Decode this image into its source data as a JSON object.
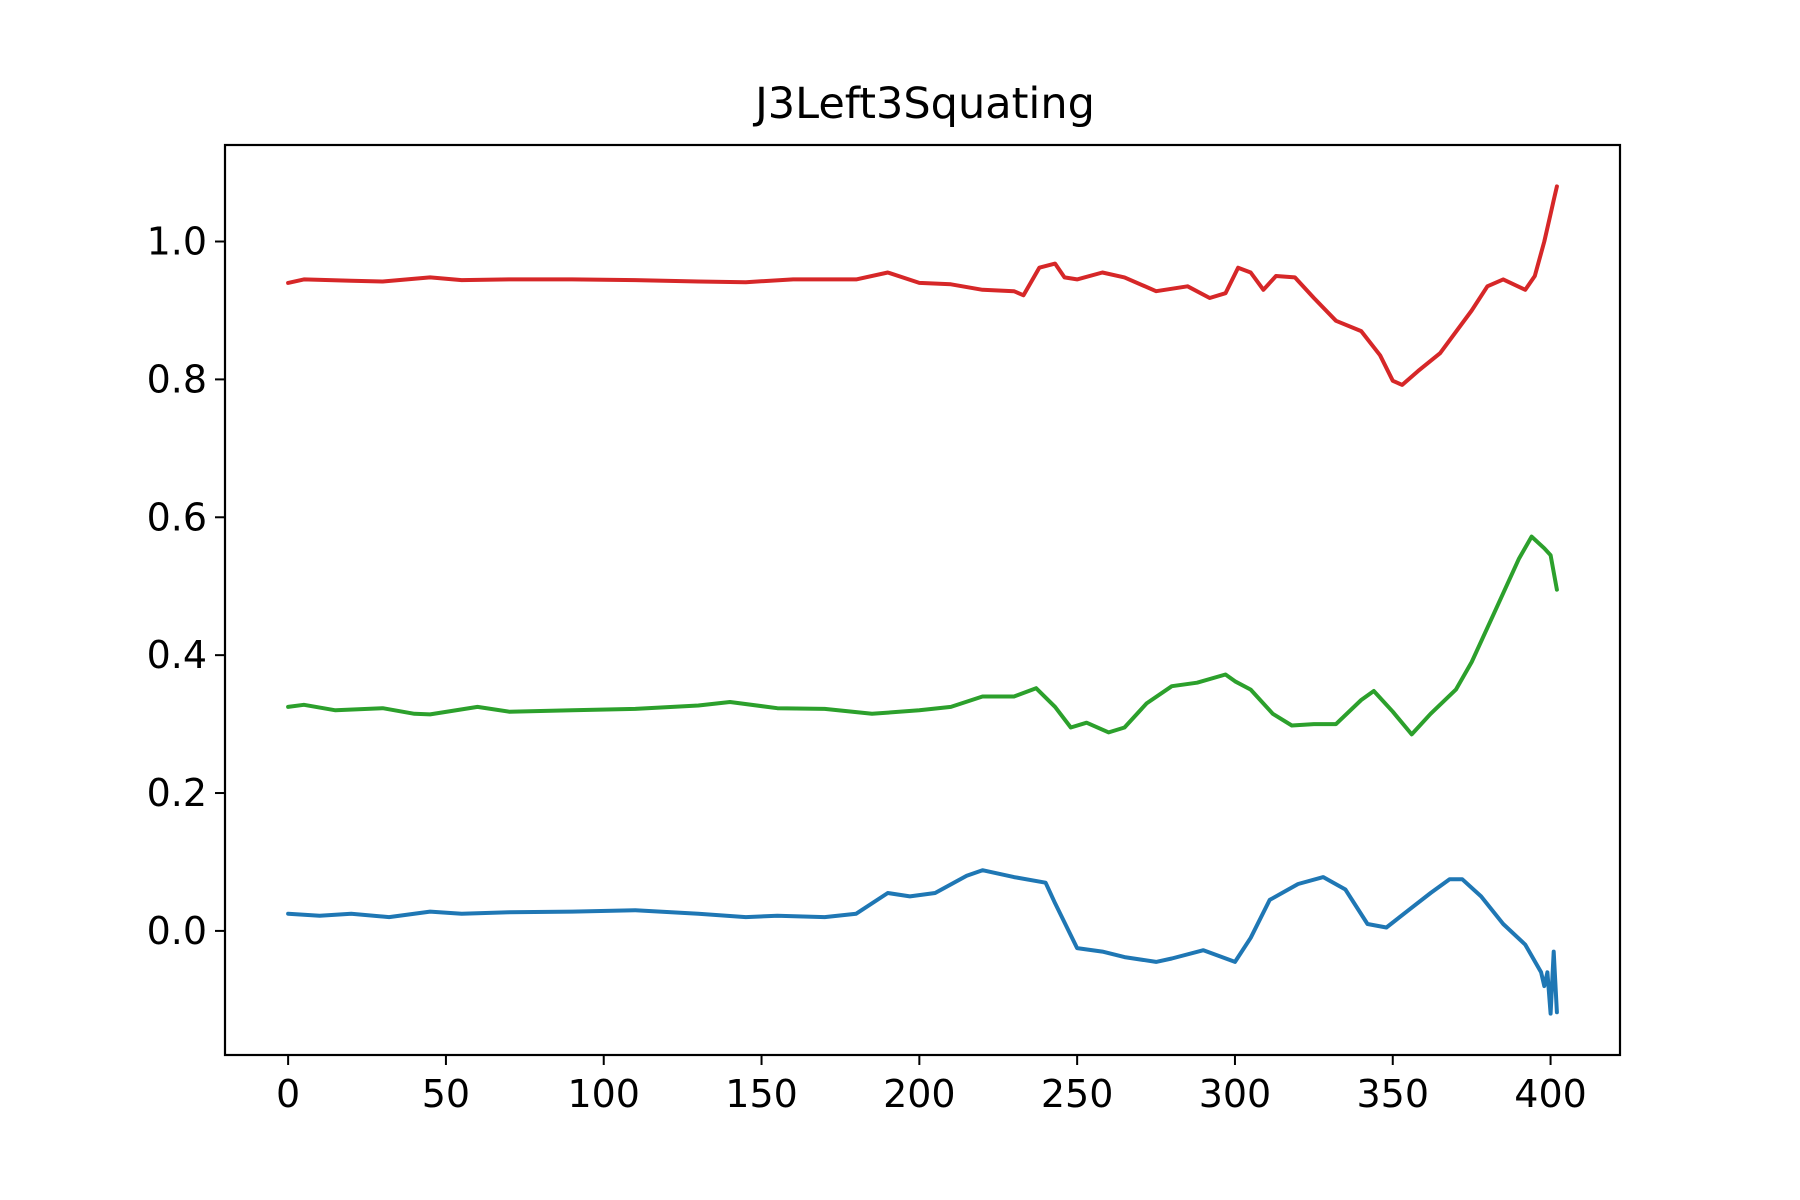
{
  "chart_data": {
    "type": "line",
    "title": "J3Left3Squating",
    "xlabel": "",
    "ylabel": "",
    "xlim": [
      -20,
      422
    ],
    "ylim": [
      -0.18,
      1.14
    ],
    "xticks": [
      0,
      50,
      100,
      150,
      200,
      250,
      300,
      350,
      400
    ],
    "xtick_labels": [
      "0",
      "50",
      "100",
      "150",
      "200",
      "250",
      "300",
      "350",
      "400"
    ],
    "yticks": [
      0.0,
      0.2,
      0.4,
      0.6,
      0.8,
      1.0
    ],
    "ytick_labels": [
      "0.0",
      "0.2",
      "0.4",
      "0.6",
      "0.8",
      "1.0"
    ],
    "grid": false,
    "legend": "none",
    "series": [
      {
        "color": "#d62728",
        "points": [
          [
            0,
            0.94
          ],
          [
            5,
            0.945
          ],
          [
            20,
            0.943
          ],
          [
            30,
            0.942
          ],
          [
            45,
            0.948
          ],
          [
            55,
            0.944
          ],
          [
            70,
            0.945
          ],
          [
            90,
            0.945
          ],
          [
            110,
            0.944
          ],
          [
            130,
            0.942
          ],
          [
            145,
            0.941
          ],
          [
            160,
            0.945
          ],
          [
            180,
            0.945
          ],
          [
            190,
            0.955
          ],
          [
            200,
            0.94
          ],
          [
            210,
            0.938
          ],
          [
            220,
            0.93
          ],
          [
            230,
            0.928
          ],
          [
            233,
            0.922
          ],
          [
            238,
            0.962
          ],
          [
            243,
            0.968
          ],
          [
            246,
            0.948
          ],
          [
            250,
            0.945
          ],
          [
            258,
            0.955
          ],
          [
            265,
            0.948
          ],
          [
            275,
            0.928
          ],
          [
            285,
            0.935
          ],
          [
            292,
            0.918
          ],
          [
            297,
            0.925
          ],
          [
            301,
            0.962
          ],
          [
            305,
            0.955
          ],
          [
            309,
            0.93
          ],
          [
            313,
            0.95
          ],
          [
            319,
            0.948
          ],
          [
            325,
            0.918
          ],
          [
            332,
            0.885
          ],
          [
            340,
            0.87
          ],
          [
            346,
            0.835
          ],
          [
            350,
            0.798
          ],
          [
            353,
            0.792
          ],
          [
            358,
            0.812
          ],
          [
            365,
            0.838
          ],
          [
            375,
            0.9
          ],
          [
            380,
            0.935
          ],
          [
            385,
            0.945
          ],
          [
            392,
            0.93
          ],
          [
            395,
            0.95
          ],
          [
            398,
            1.0
          ],
          [
            400,
            1.04
          ],
          [
            401,
            1.06
          ],
          [
            402,
            1.08
          ]
        ]
      },
      {
        "color": "#2ca02c",
        "points": [
          [
            0,
            0.325
          ],
          [
            5,
            0.328
          ],
          [
            15,
            0.32
          ],
          [
            30,
            0.323
          ],
          [
            40,
            0.315
          ],
          [
            45,
            0.314
          ],
          [
            60,
            0.325
          ],
          [
            70,
            0.318
          ],
          [
            90,
            0.32
          ],
          [
            110,
            0.322
          ],
          [
            130,
            0.327
          ],
          [
            140,
            0.332
          ],
          [
            155,
            0.323
          ],
          [
            170,
            0.322
          ],
          [
            185,
            0.315
          ],
          [
            200,
            0.32
          ],
          [
            210,
            0.325
          ],
          [
            220,
            0.34
          ],
          [
            230,
            0.34
          ],
          [
            237,
            0.352
          ],
          [
            243,
            0.325
          ],
          [
            248,
            0.295
          ],
          [
            253,
            0.302
          ],
          [
            260,
            0.288
          ],
          [
            265,
            0.295
          ],
          [
            272,
            0.33
          ],
          [
            280,
            0.355
          ],
          [
            288,
            0.36
          ],
          [
            297,
            0.372
          ],
          [
            300,
            0.362
          ],
          [
            305,
            0.35
          ],
          [
            312,
            0.315
          ],
          [
            318,
            0.298
          ],
          [
            325,
            0.3
          ],
          [
            332,
            0.3
          ],
          [
            340,
            0.335
          ],
          [
            344,
            0.348
          ],
          [
            350,
            0.318
          ],
          [
            356,
            0.285
          ],
          [
            362,
            0.315
          ],
          [
            370,
            0.35
          ],
          [
            375,
            0.39
          ],
          [
            382,
            0.46
          ],
          [
            390,
            0.54
          ],
          [
            394,
            0.572
          ],
          [
            398,
            0.555
          ],
          [
            400,
            0.545
          ],
          [
            402,
            0.495
          ]
        ]
      },
      {
        "color": "#1f77b4",
        "points": [
          [
            0,
            0.025
          ],
          [
            10,
            0.022
          ],
          [
            20,
            0.025
          ],
          [
            32,
            0.02
          ],
          [
            45,
            0.028
          ],
          [
            55,
            0.025
          ],
          [
            70,
            0.027
          ],
          [
            90,
            0.028
          ],
          [
            110,
            0.03
          ],
          [
            130,
            0.025
          ],
          [
            145,
            0.02
          ],
          [
            155,
            0.022
          ],
          [
            170,
            0.02
          ],
          [
            180,
            0.025
          ],
          [
            190,
            0.055
          ],
          [
            197,
            0.05
          ],
          [
            205,
            0.055
          ],
          [
            215,
            0.08
          ],
          [
            220,
            0.088
          ],
          [
            230,
            0.078
          ],
          [
            240,
            0.07
          ],
          [
            243,
            0.04
          ],
          [
            250,
            -0.025
          ],
          [
            258,
            -0.03
          ],
          [
            265,
            -0.038
          ],
          [
            275,
            -0.045
          ],
          [
            280,
            -0.04
          ],
          [
            290,
            -0.028
          ],
          [
            300,
            -0.045
          ],
          [
            305,
            -0.01
          ],
          [
            311,
            0.045
          ],
          [
            320,
            0.068
          ],
          [
            328,
            0.078
          ],
          [
            335,
            0.06
          ],
          [
            342,
            0.01
          ],
          [
            348,
            0.005
          ],
          [
            355,
            0.03
          ],
          [
            362,
            0.055
          ],
          [
            368,
            0.075
          ],
          [
            372,
            0.075
          ],
          [
            378,
            0.05
          ],
          [
            385,
            0.01
          ],
          [
            392,
            -0.02
          ],
          [
            397,
            -0.06
          ],
          [
            398,
            -0.08
          ],
          [
            399,
            -0.06
          ],
          [
            400,
            -0.12
          ],
          [
            401,
            -0.03
          ],
          [
            402,
            -0.118
          ]
        ]
      }
    ]
  }
}
